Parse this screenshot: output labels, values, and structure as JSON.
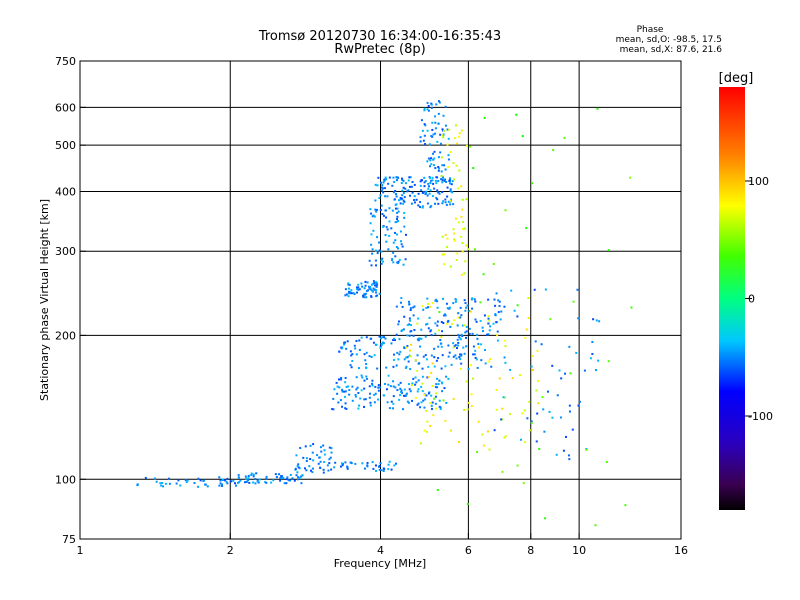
{
  "chart_data": {
    "type": "scatter",
    "title": "Tromsø 20120730 16:34:00-16:35:43",
    "subtitle": "RwPretec (8p)",
    "xlabel": "Frequency [MHz]",
    "ylabel": "Stationary phase Virtual Height [km]",
    "x_scale": "log",
    "y_scale": "log",
    "xlim": [
      1,
      16
    ],
    "ylim": [
      75,
      750
    ],
    "x_ticks": [
      1,
      2,
      4,
      6,
      8,
      10,
      16
    ],
    "x_tick_labels": [
      "1",
      "2",
      "4",
      "6",
      "8",
      "10",
      "16"
    ],
    "x_grid": [
      2,
      4,
      6,
      8,
      10
    ],
    "y_ticks": [
      75,
      100,
      200,
      300,
      400,
      500,
      600,
      750
    ],
    "y_tick_labels": [
      "75",
      "100",
      "200",
      "300",
      "400",
      "500",
      "600",
      "750"
    ],
    "y_grid": [
      100,
      200,
      300,
      400,
      500,
      600
    ],
    "grid": true,
    "stats_heading": "Phase",
    "stats_line_o": "mean, sd,O: -98.5, 17.5",
    "stats_line_x": "mean, sd,X:  87.6, 21.6",
    "colorbar": {
      "label": "[deg]",
      "range": [
        -180,
        180
      ],
      "ticks": [
        100,
        0,
        -100
      ],
      "tick_labels": [
        "100",
        "0",
        "-100"
      ]
    },
    "point_groups": [
      {
        "name": "ground-trace-low",
        "phase": -98,
        "n": 45,
        "x": [
          1.3,
          2.1
        ],
        "y": [
          96,
          101
        ]
      },
      {
        "name": "ground-trace-mid",
        "phase": -98,
        "n": 60,
        "x": [
          2.0,
          2.8
        ],
        "y": [
          98,
          103
        ]
      },
      {
        "name": "f1-rise",
        "phase": -100,
        "n": 40,
        "x": [
          2.7,
          3.2
        ],
        "y": [
          103,
          120
        ]
      },
      {
        "name": "e-trace-upper",
        "phase": -100,
        "n": 45,
        "x": [
          3.0,
          4.3
        ],
        "y": [
          104,
          109
        ]
      },
      {
        "name": "f1-band-150",
        "phase": -98,
        "n": 150,
        "x": [
          3.2,
          5.5
        ],
        "y": [
          140,
          165
        ]
      },
      {
        "name": "f1-band-185",
        "phase": -98,
        "n": 150,
        "x": [
          3.3,
          6.5
        ],
        "y": [
          170,
          200
        ]
      },
      {
        "name": "f1-band-220",
        "phase": -98,
        "n": 120,
        "x": [
          4.3,
          7.0
        ],
        "y": [
          200,
          240
        ]
      },
      {
        "name": "f1-band-250",
        "phase": -98,
        "n": 70,
        "x": [
          3.4,
          4.0
        ],
        "y": [
          240,
          260
        ]
      },
      {
        "name": "f2-low-cusp",
        "phase": -98,
        "n": 80,
        "x": [
          3.8,
          4.5
        ],
        "y": [
          280,
          370
        ]
      },
      {
        "name": "f2-band-400",
        "phase": -100,
        "n": 160,
        "x": [
          3.9,
          5.6
        ],
        "y": [
          370,
          430
        ]
      },
      {
        "name": "f2-cusp",
        "phase": -98,
        "n": 70,
        "x": [
          4.8,
          5.5
        ],
        "y": [
          440,
          620
        ]
      },
      {
        "name": "x-mode-f2",
        "phase": 90,
        "n": 55,
        "x": [
          5.3,
          6.0
        ],
        "y": [
          260,
          560
        ]
      },
      {
        "name": "x-mode-f1",
        "phase": 95,
        "n": 90,
        "x": [
          4.5,
          8.5
        ],
        "y": [
          115,
          240
        ]
      },
      {
        "name": "high-freq-scatter",
        "phase": -100,
        "n": 60,
        "x": [
          6.5,
          11.0
        ],
        "y": [
          110,
          250
        ]
      },
      {
        "name": "sparse-noise",
        "phase": 40,
        "n": 40,
        "x": [
          5.0,
          13.0
        ],
        "y": [
          78,
          600
        ]
      }
    ]
  }
}
